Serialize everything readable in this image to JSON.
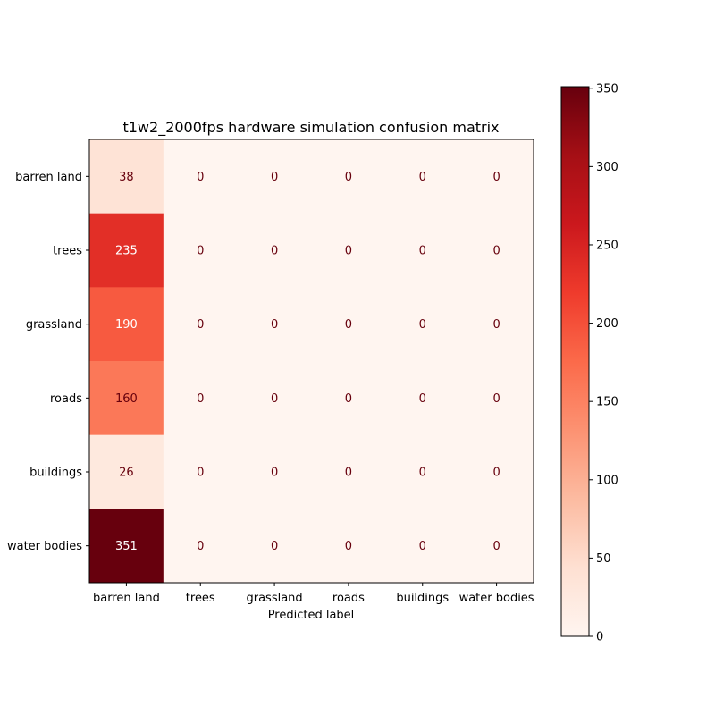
{
  "chart_data": {
    "type": "heatmap",
    "title": "t1w2_2000fps hardware simulation confusion matrix",
    "xlabel": "Predicted label",
    "ylabel": "",
    "row_labels": [
      "barren land",
      "trees",
      "grassland",
      "roads",
      "buildings",
      "water bodies"
    ],
    "col_labels": [
      "barren land",
      "trees",
      "grassland",
      "roads",
      "buildings",
      "water bodies"
    ],
    "matrix": [
      [
        38,
        0,
        0,
        0,
        0,
        0
      ],
      [
        235,
        0,
        0,
        0,
        0,
        0
      ],
      [
        190,
        0,
        0,
        0,
        0,
        0
      ],
      [
        160,
        0,
        0,
        0,
        0,
        0
      ],
      [
        26,
        0,
        0,
        0,
        0,
        0
      ],
      [
        351,
        0,
        0,
        0,
        0,
        0
      ]
    ],
    "colormap": "Reds",
    "colorbar": {
      "range": [
        0,
        351
      ],
      "ticks": [
        0,
        50,
        100,
        150,
        200,
        250,
        300,
        350
      ]
    },
    "grid": false
  }
}
